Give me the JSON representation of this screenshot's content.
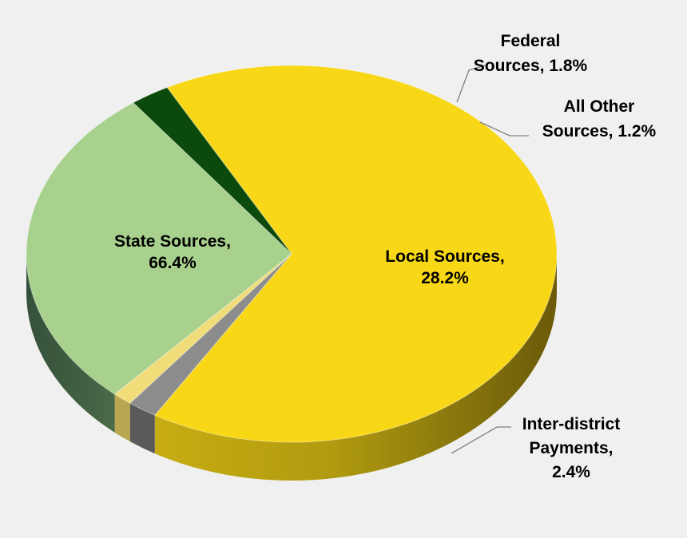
{
  "chart_data": {
    "type": "pie",
    "style": "3d",
    "slices": [
      {
        "label": "State Sources",
        "value": 66.4,
        "label_text": [
          "State Sources,",
          "66.4%"
        ],
        "color": "#f7d716",
        "side_color": "#b89e0a"
      },
      {
        "label": "Federal Sources",
        "value": 1.8,
        "label_text": [
          "Federal",
          "Sources, 1.8%"
        ],
        "color": "#8c8c8c",
        "side_color": "#5a5a5a"
      },
      {
        "label": "All Other Sources",
        "value": 1.2,
        "label_text": [
          "All Other",
          "Sources, 1.2%"
        ],
        "color": "#f0dc78",
        "side_color": "#b8a650"
      },
      {
        "label": "Local Sources",
        "value": 28.2,
        "label_text": [
          "Local Sources,",
          "28.2%"
        ],
        "color": "#a9d18e",
        "side_color": "#3f5a3f"
      },
      {
        "label": "Inter-district Payments",
        "value": 2.4,
        "label_text": [
          "Inter-district",
          "Payments,",
          "2.4%"
        ],
        "color": "#0b4a0b",
        "side_color": "#062806"
      }
    ],
    "legend": "none",
    "data_labels": "category-and-percent"
  }
}
